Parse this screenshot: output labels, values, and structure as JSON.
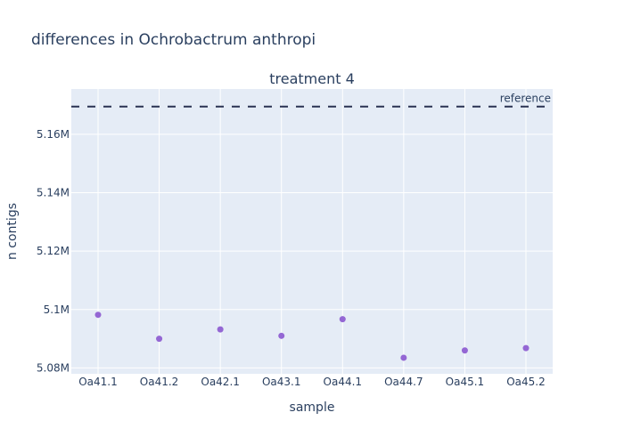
{
  "chart_data": {
    "type": "scatter",
    "title": "differences in Ochrobactrum anthropi",
    "subtitle": "treatment 4",
    "xlabel": "sample",
    "ylabel": "n contigs",
    "categories": [
      "Oa41.1",
      "Oa41.2",
      "Oa42.1",
      "Oa43.1",
      "Oa44.1",
      "Oa44.7",
      "Oa45.1",
      "Oa45.2"
    ],
    "series": [
      {
        "values": [
          5098200,
          5090000,
          5093200,
          5091000,
          5096700,
          5083500,
          5086000,
          5086800
        ],
        "color": "#9467d4"
      }
    ],
    "reference": {
      "label": "reference",
      "value": 5169500,
      "color": "#2a3252"
    },
    "ylim": [
      5078000,
      5175500
    ],
    "yticks": [
      5080000,
      5100000,
      5120000,
      5140000,
      5160000
    ],
    "ytick_labels": [
      "5.08M",
      "5.1M",
      "5.12M",
      "5.14M",
      "5.16M"
    ],
    "plot_bgcolor": "#e5ecf6",
    "grid": true
  }
}
